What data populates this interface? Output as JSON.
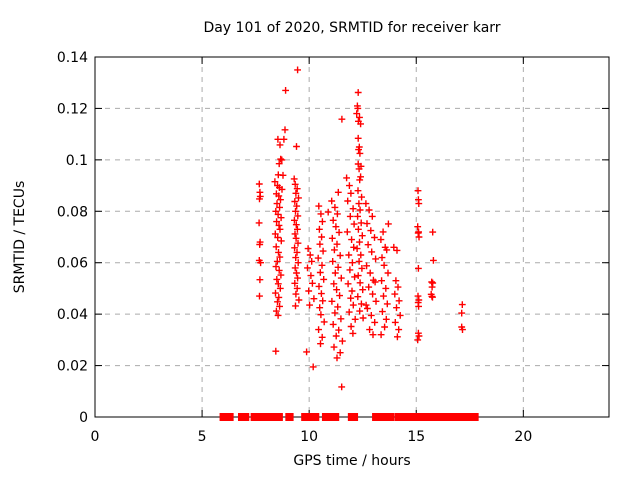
{
  "title": "Day 101 of 2020, SRMTID for receiver karr",
  "chart_data": {
    "type": "scatter",
    "title": "Day 101 of 2020, SRMTID for receiver karr",
    "xlabel": "GPS time / hours",
    "ylabel": "SRMTID / TECUs",
    "xlim": [
      0,
      24
    ],
    "ylim": [
      0,
      0.14
    ],
    "xticks": [
      0,
      5,
      10,
      15,
      20
    ],
    "xtick_labels": [
      "0",
      "5",
      "10",
      "15",
      "20"
    ],
    "yticks": [
      0,
      0.02,
      0.04,
      0.06,
      0.08,
      0.1,
      0.12,
      0.14
    ],
    "ytick_labels": [
      "0",
      "0.02",
      "0.04",
      "0.06",
      "0.08",
      "0.1",
      "0.12",
      "0.14"
    ],
    "grid": true,
    "legend": false,
    "marker": "plus",
    "marker_color": "#ff0000",
    "grid_color": "#ababab",
    "border_color": "#000000",
    "points": [
      [
        7.67,
        0.0906
      ],
      [
        7.7,
        0.0874
      ],
      [
        7.72,
        0.0858
      ],
      [
        7.68,
        0.0848
      ],
      [
        7.66,
        0.0755
      ],
      [
        7.71,
        0.068
      ],
      [
        7.69,
        0.0671
      ],
      [
        7.67,
        0.0609
      ],
      [
        7.73,
        0.06
      ],
      [
        7.7,
        0.0534
      ],
      [
        7.68,
        0.047
      ],
      [
        8.9,
        0.127
      ],
      [
        8.87,
        0.1117
      ],
      [
        8.82,
        0.108
      ],
      [
        8.54,
        0.108
      ],
      [
        8.64,
        0.1058
      ],
      [
        8.67,
        0.1003
      ],
      [
        8.72,
        0.1
      ],
      [
        8.6,
        0.0985
      ],
      [
        8.56,
        0.0942
      ],
      [
        8.78,
        0.094
      ],
      [
        8.4,
        0.0915
      ],
      [
        8.52,
        0.09
      ],
      [
        8.61,
        0.0892
      ],
      [
        8.73,
        0.0885
      ],
      [
        8.47,
        0.0868
      ],
      [
        8.58,
        0.086
      ],
      [
        8.66,
        0.0845
      ],
      [
        8.5,
        0.083
      ],
      [
        8.62,
        0.0815
      ],
      [
        8.44,
        0.08
      ],
      [
        8.55,
        0.0788
      ],
      [
        8.69,
        0.0775
      ],
      [
        8.48,
        0.076
      ],
      [
        8.59,
        0.0745
      ],
      [
        8.64,
        0.073
      ],
      [
        8.42,
        0.0712
      ],
      [
        8.53,
        0.0698
      ],
      [
        8.7,
        0.0685
      ],
      [
        8.46,
        0.0662
      ],
      [
        8.57,
        0.064
      ],
      [
        8.63,
        0.0622
      ],
      [
        8.51,
        0.0605
      ],
      [
        8.45,
        0.0585
      ],
      [
        8.6,
        0.057
      ],
      [
        8.68,
        0.0552
      ],
      [
        8.49,
        0.0535
      ],
      [
        8.56,
        0.0518
      ],
      [
        8.65,
        0.05
      ],
      [
        8.43,
        0.0482
      ],
      [
        8.58,
        0.0465
      ],
      [
        8.52,
        0.0448
      ],
      [
        8.62,
        0.043
      ],
      [
        8.47,
        0.0412
      ],
      [
        8.55,
        0.0395
      ],
      [
        8.44,
        0.0256
      ],
      [
        9.46,
        0.135
      ],
      [
        9.41,
        0.1052
      ],
      [
        9.3,
        0.0926
      ],
      [
        9.35,
        0.0905
      ],
      [
        9.44,
        0.0888
      ],
      [
        9.38,
        0.087
      ],
      [
        9.5,
        0.0852
      ],
      [
        9.33,
        0.0838
      ],
      [
        9.42,
        0.082
      ],
      [
        9.36,
        0.08
      ],
      [
        9.47,
        0.0782
      ],
      [
        9.31,
        0.0765
      ],
      [
        9.4,
        0.0748
      ],
      [
        9.45,
        0.073
      ],
      [
        9.34,
        0.0712
      ],
      [
        9.39,
        0.0695
      ],
      [
        9.48,
        0.0676
      ],
      [
        9.32,
        0.0658
      ],
      [
        9.43,
        0.064
      ],
      [
        9.37,
        0.062
      ],
      [
        9.49,
        0.06
      ],
      [
        9.35,
        0.058
      ],
      [
        9.41,
        0.056
      ],
      [
        9.46,
        0.054
      ],
      [
        9.33,
        0.052
      ],
      [
        9.44,
        0.05
      ],
      [
        9.38,
        0.0478
      ],
      [
        9.52,
        0.0455
      ],
      [
        9.36,
        0.0432
      ],
      [
        9.88,
        0.0253
      ],
      [
        10.19,
        0.0195
      ],
      [
        9.95,
        0.0655
      ],
      [
        10.05,
        0.063
      ],
      [
        10.12,
        0.0605
      ],
      [
        9.92,
        0.058
      ],
      [
        10.08,
        0.055
      ],
      [
        10.15,
        0.052
      ],
      [
        9.98,
        0.049
      ],
      [
        10.22,
        0.046
      ],
      [
        10.02,
        0.0435
      ],
      [
        10.45,
        0.082
      ],
      [
        10.55,
        0.079
      ],
      [
        10.62,
        0.076
      ],
      [
        10.48,
        0.073
      ],
      [
        10.58,
        0.07
      ],
      [
        10.5,
        0.0672
      ],
      [
        10.65,
        0.0645
      ],
      [
        10.42,
        0.0618
      ],
      [
        10.6,
        0.059
      ],
      [
        10.52,
        0.0562
      ],
      [
        10.68,
        0.0535
      ],
      [
        10.46,
        0.0508
      ],
      [
        10.57,
        0.048
      ],
      [
        10.63,
        0.0452
      ],
      [
        10.49,
        0.0425
      ],
      [
        10.55,
        0.0398
      ],
      [
        10.7,
        0.037
      ],
      [
        10.44,
        0.034
      ],
      [
        10.61,
        0.031
      ],
      [
        10.53,
        0.0285
      ],
      [
        10.89,
        0.0797
      ],
      [
        11.53,
        0.1158
      ],
      [
        11.36,
        0.0874
      ],
      [
        11.05,
        0.084
      ],
      [
        11.2,
        0.0815
      ],
      [
        11.32,
        0.079
      ],
      [
        11.12,
        0.0765
      ],
      [
        11.25,
        0.074
      ],
      [
        11.4,
        0.0718
      ],
      [
        11.08,
        0.0695
      ],
      [
        11.3,
        0.0672
      ],
      [
        11.18,
        0.065
      ],
      [
        11.45,
        0.0628
      ],
      [
        11.1,
        0.0605
      ],
      [
        11.35,
        0.0582
      ],
      [
        11.22,
        0.056
      ],
      [
        11.5,
        0.054
      ],
      [
        11.15,
        0.0518
      ],
      [
        11.28,
        0.0495
      ],
      [
        11.42,
        0.0472
      ],
      [
        11.06,
        0.045
      ],
      [
        11.33,
        0.0428
      ],
      [
        11.2,
        0.0405
      ],
      [
        11.48,
        0.0382
      ],
      [
        11.12,
        0.036
      ],
      [
        11.38,
        0.0338
      ],
      [
        11.26,
        0.0315
      ],
      [
        11.55,
        0.0295
      ],
      [
        11.16,
        0.0272
      ],
      [
        11.52,
        0.0117
      ],
      [
        11.45,
        0.025
      ],
      [
        11.3,
        0.023
      ],
      [
        11.75,
        0.093
      ],
      [
        11.88,
        0.09
      ],
      [
        11.95,
        0.087
      ],
      [
        11.8,
        0.084
      ],
      [
        12.05,
        0.081
      ],
      [
        11.92,
        0.078
      ],
      [
        12.1,
        0.075
      ],
      [
        11.78,
        0.072
      ],
      [
        11.98,
        0.069
      ],
      [
        12.08,
        0.066
      ],
      [
        11.85,
        0.063
      ],
      [
        12.02,
        0.06
      ],
      [
        11.9,
        0.0572
      ],
      [
        12.12,
        0.0545
      ],
      [
        11.82,
        0.0518
      ],
      [
        12.0,
        0.049
      ],
      [
        11.94,
        0.0462
      ],
      [
        12.06,
        0.0435
      ],
      [
        11.87,
        0.0408
      ],
      [
        12.15,
        0.038
      ],
      [
        11.96,
        0.0352
      ],
      [
        12.04,
        0.0325
      ],
      [
        12.29,
        0.1262
      ],
      [
        12.25,
        0.121
      ],
      [
        12.27,
        0.12
      ],
      [
        12.22,
        0.118
      ],
      [
        12.35,
        0.1165
      ],
      [
        12.3,
        0.115
      ],
      [
        12.4,
        0.114
      ],
      [
        12.29,
        0.1084
      ],
      [
        12.34,
        0.105
      ],
      [
        12.31,
        0.104
      ],
      [
        12.37,
        0.1025
      ],
      [
        12.29,
        0.0984
      ],
      [
        12.42,
        0.0975
      ],
      [
        12.33,
        0.0965
      ],
      [
        12.4,
        0.0934
      ],
      [
        12.36,
        0.0922
      ],
      [
        12.28,
        0.088
      ],
      [
        12.45,
        0.0855
      ],
      [
        12.32,
        0.083
      ],
      [
        12.38,
        0.0805
      ],
      [
        12.26,
        0.078
      ],
      [
        12.43,
        0.0755
      ],
      [
        12.3,
        0.073
      ],
      [
        12.48,
        0.0705
      ],
      [
        12.35,
        0.068
      ],
      [
        12.24,
        0.0655
      ],
      [
        12.41,
        0.063
      ],
      [
        12.33,
        0.0605
      ],
      [
        12.46,
        0.0578
      ],
      [
        12.29,
        0.055
      ],
      [
        12.38,
        0.0522
      ],
      [
        12.5,
        0.0495
      ],
      [
        12.27,
        0.0468
      ],
      [
        12.44,
        0.044
      ],
      [
        12.36,
        0.0412
      ],
      [
        12.52,
        0.0385
      ],
      [
        12.65,
        0.083
      ],
      [
        12.8,
        0.0805
      ],
      [
        12.95,
        0.078
      ],
      [
        12.7,
        0.0752
      ],
      [
        12.88,
        0.0725
      ],
      [
        13.05,
        0.0698
      ],
      [
        12.75,
        0.067
      ],
      [
        12.92,
        0.0642
      ],
      [
        13.1,
        0.0615
      ],
      [
        12.68,
        0.0588
      ],
      [
        12.85,
        0.056
      ],
      [
        13.0,
        0.0532
      ],
      [
        12.78,
        0.0505
      ],
      [
        12.96,
        0.0478
      ],
      [
        13.12,
        0.045
      ],
      [
        12.72,
        0.0422
      ],
      [
        12.9,
        0.0395
      ],
      [
        13.06,
        0.0368
      ],
      [
        12.82,
        0.034
      ],
      [
        12.98,
        0.032
      ],
      [
        12.66,
        0.0435
      ],
      [
        13.08,
        0.0525
      ],
      [
        13.7,
        0.0751
      ],
      [
        13.45,
        0.072
      ],
      [
        13.35,
        0.069
      ],
      [
        13.55,
        0.066
      ],
      [
        13.62,
        0.065
      ],
      [
        13.4,
        0.062
      ],
      [
        13.5,
        0.059
      ],
      [
        13.68,
        0.056
      ],
      [
        13.38,
        0.053
      ],
      [
        13.58,
        0.05
      ],
      [
        13.47,
        0.047
      ],
      [
        13.65,
        0.044
      ],
      [
        13.42,
        0.041
      ],
      [
        13.6,
        0.038
      ],
      [
        13.52,
        0.035
      ],
      [
        13.36,
        0.032
      ],
      [
        13.95,
        0.066
      ],
      [
        14.1,
        0.0648
      ],
      [
        14.05,
        0.053
      ],
      [
        14.15,
        0.0505
      ],
      [
        14.0,
        0.0478
      ],
      [
        14.2,
        0.0452
      ],
      [
        14.08,
        0.0425
      ],
      [
        14.25,
        0.0395
      ],
      [
        14.02,
        0.0368
      ],
      [
        14.18,
        0.034
      ],
      [
        14.12,
        0.0312
      ],
      [
        15.08,
        0.088
      ],
      [
        15.1,
        0.0845
      ],
      [
        15.12,
        0.083
      ],
      [
        15.07,
        0.074
      ],
      [
        15.11,
        0.072
      ],
      [
        15.09,
        0.0715
      ],
      [
        15.13,
        0.07
      ],
      [
        15.1,
        0.0578
      ],
      [
        15.08,
        0.047
      ],
      [
        15.12,
        0.0455
      ],
      [
        15.09,
        0.0445
      ],
      [
        15.11,
        0.043
      ],
      [
        15.1,
        0.0326
      ],
      [
        15.13,
        0.0315
      ],
      [
        15.07,
        0.03
      ],
      [
        15.77,
        0.0719
      ],
      [
        15.8,
        0.0609
      ],
      [
        15.72,
        0.0525
      ],
      [
        15.77,
        0.0521
      ],
      [
        15.74,
        0.0505
      ],
      [
        15.7,
        0.0477
      ],
      [
        15.73,
        0.0469
      ],
      [
        15.76,
        0.0466
      ],
      [
        17.15,
        0.0437
      ],
      [
        17.12,
        0.0404
      ],
      [
        17.12,
        0.035
      ],
      [
        17.16,
        0.034
      ]
    ],
    "zero_segments": [
      [
        5.91,
        6.38
      ],
      [
        6.77,
        6.9
      ],
      [
        7.0,
        7.11
      ],
      [
        7.36,
        7.55
      ],
      [
        7.62,
        7.94
      ],
      [
        8.01,
        8.25
      ],
      [
        8.3,
        8.51
      ],
      [
        8.59,
        8.68
      ],
      [
        8.98,
        9.18
      ],
      [
        9.72,
        10.12
      ],
      [
        10.19,
        10.38
      ],
      [
        10.69,
        11.31
      ],
      [
        11.9,
        12.19
      ],
      [
        13.03,
        13.15
      ],
      [
        13.18,
        13.62
      ],
      [
        13.65,
        13.74
      ],
      [
        13.8,
        13.88
      ],
      [
        14.08,
        14.32
      ],
      [
        14.47,
        15.1
      ],
      [
        15.17,
        15.3
      ],
      [
        15.36,
        15.79
      ],
      [
        15.87,
        16.37
      ],
      [
        16.5,
        17.59
      ],
      [
        17.66,
        17.82
      ]
    ]
  }
}
